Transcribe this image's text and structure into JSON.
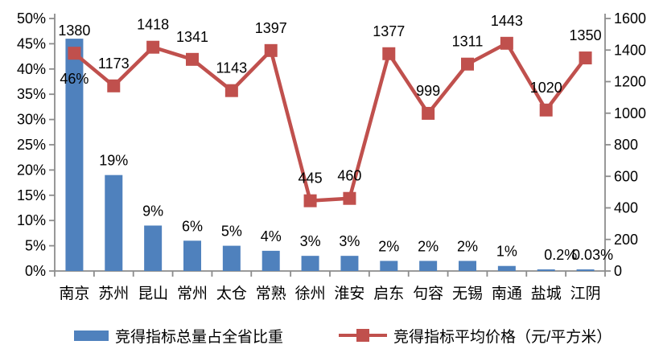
{
  "chart_data": {
    "type": "combo",
    "title": "",
    "categories": [
      "南京",
      "苏州",
      "昆山",
      "常州",
      "太仓",
      "常熟",
      "徐州",
      "淮安",
      "启东",
      "句容",
      "无锡",
      "南通",
      "盐城",
      "江阴"
    ],
    "series": [
      {
        "name": "竞得指标总量占全省比重",
        "type": "bar",
        "axis": "left",
        "color": "#4F81BD",
        "values": [
          46,
          19,
          9,
          6,
          5,
          4,
          3,
          3,
          2,
          2,
          2,
          1,
          0.2,
          0.03
        ],
        "labels": [
          "46%",
          "19%",
          "9%",
          "6%",
          "5%",
          "4%",
          "3%",
          "3%",
          "2%",
          "2%",
          "2%",
          "1%",
          "0.2%",
          "0.03%"
        ]
      },
      {
        "name": "竞得指标平均价格（元/平方米）",
        "type": "line",
        "axis": "right",
        "color": "#C0504D",
        "values": [
          1380,
          1173,
          1418,
          1341,
          1143,
          1397,
          445,
          460,
          1377,
          999,
          1311,
          1443,
          1020,
          1350
        ],
        "labels": [
          "1380",
          "1173",
          "1418",
          "1341",
          "1143",
          "1397",
          "445",
          "460",
          "1377",
          "999",
          "1311",
          "1443",
          "1020",
          "1350"
        ]
      }
    ],
    "left_axis": {
      "min": 0,
      "max": 50,
      "step": 5,
      "format": "percent",
      "tick_labels": [
        "0%",
        "5%",
        "10%",
        "15%",
        "20%",
        "25%",
        "30%",
        "35%",
        "40%",
        "45%",
        "50%"
      ]
    },
    "right_axis": {
      "min": 0,
      "max": 1600,
      "step": 200,
      "tick_labels": [
        "0",
        "200",
        "400",
        "600",
        "800",
        "1000",
        "1200",
        "1400",
        "1600"
      ]
    },
    "grid": false,
    "legend_position": "bottom",
    "axis_color": "#8C8C8C",
    "text_color": "#000000"
  }
}
